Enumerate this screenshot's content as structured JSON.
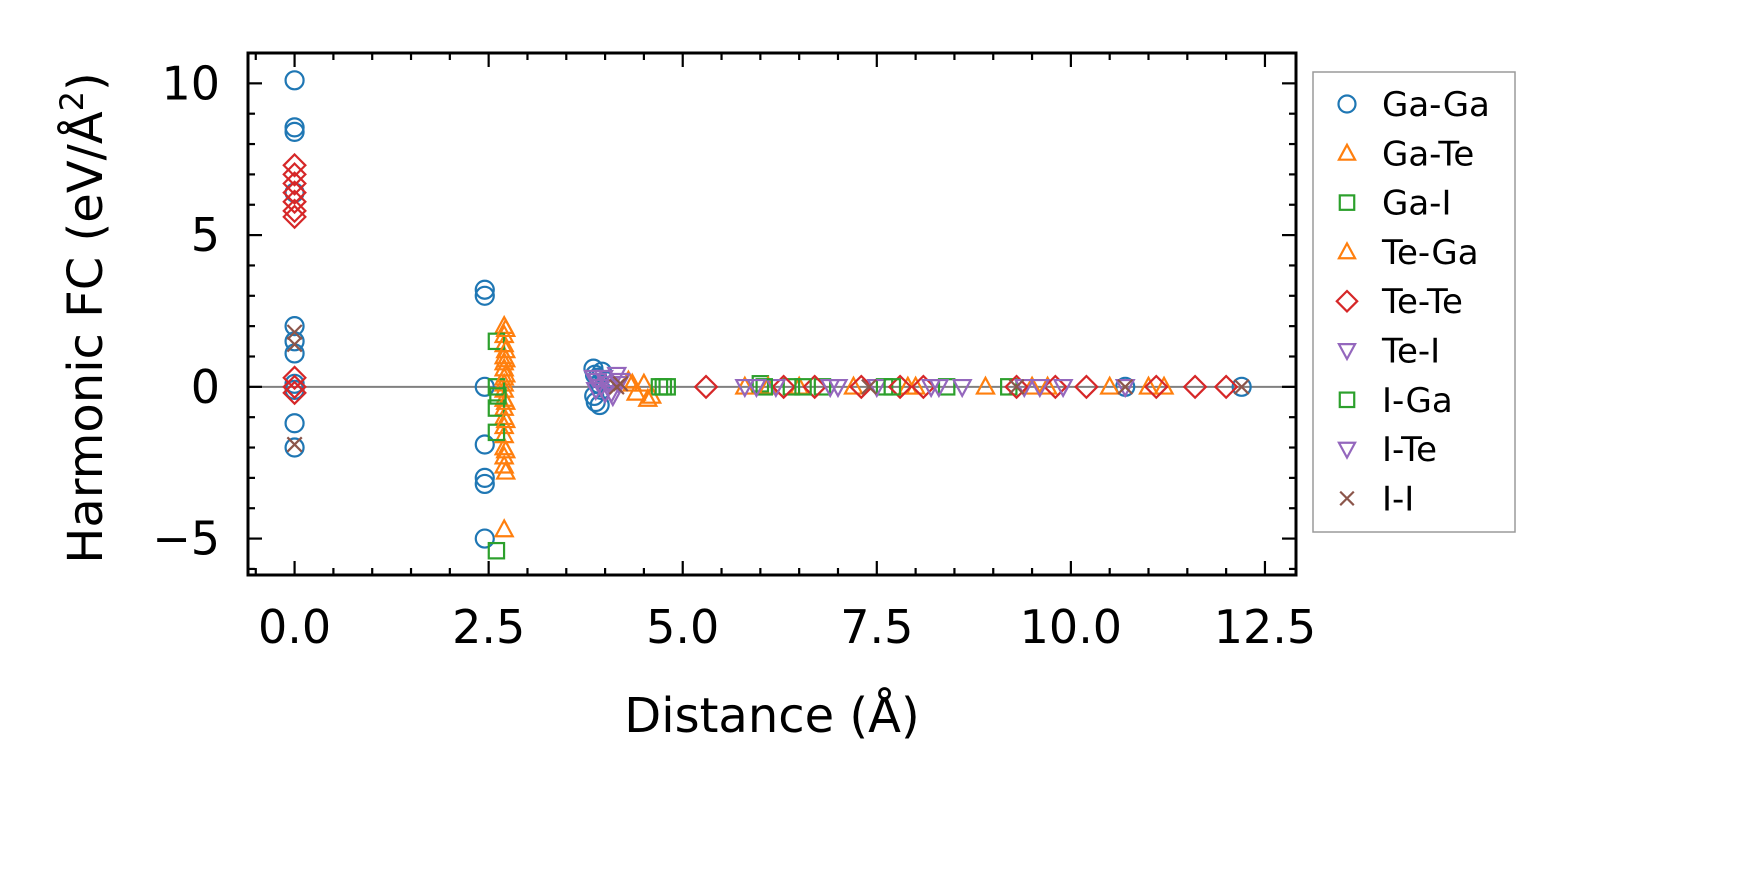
{
  "chart_data": {
    "type": "scatter",
    "xlabel": "Distance (Å)",
    "ylabel_main": "Harmonic FC (eV/Å",
    "ylabel_sup": "2",
    "ylabel_tail": ")",
    "xlim": [
      -0.6,
      12.9
    ],
    "ylim": [
      -6.2,
      11.0
    ],
    "xticks": [
      0.0,
      2.5,
      5.0,
      7.5,
      10.0,
      12.5
    ],
    "xtick_labels": [
      "0.0",
      "2.5",
      "5.0",
      "7.5",
      "10.0",
      "12.5"
    ],
    "yticks": [
      10,
      5,
      0,
      -5
    ],
    "ytick_labels": [
      "10",
      "5",
      "0",
      "−5"
    ],
    "hline_y": 0,
    "legend_position": "outside-right",
    "series": [
      {
        "name": "Ga-Ga",
        "marker": "circle",
        "color": "#1f77b4",
        "x": [
          0,
          0,
          0,
          0,
          0,
          0,
          0,
          0,
          0,
          0,
          0,
          2.45,
          2.45,
          2.45,
          2.45,
          2.45,
          2.45,
          2.45,
          3.85,
          3.87,
          3.9,
          3.92,
          3.95,
          3.86,
          3.88,
          3.93,
          3.96,
          4.0,
          12.2,
          10.7
        ],
        "y": [
          10.1,
          8.55,
          8.4,
          6.4,
          2.0,
          1.5,
          1.1,
          0.1,
          -0.1,
          -1.2,
          -2.0,
          3.2,
          3.0,
          0.0,
          -1.9,
          -3.0,
          -3.2,
          -5.0,
          0.6,
          0.4,
          0.3,
          0.1,
          -0.1,
          -0.3,
          -0.5,
          -0.6,
          0.5,
          0.2,
          0.0,
          0.0
        ]
      },
      {
        "name": "Ga-Te",
        "marker": "triangle-up",
        "color": "#ff7f0e",
        "x": [
          2.7,
          2.7,
          2.7,
          2.7,
          2.7,
          2.7,
          2.7,
          2.7,
          2.7,
          2.7,
          2.7,
          2.7,
          2.7,
          2.7,
          2.7,
          2.7,
          2.7,
          2.7,
          4.3,
          4.4,
          4.5,
          4.6,
          5.8,
          6.5,
          7.2,
          8.0,
          8.9,
          9.7,
          10.5,
          11.2
        ],
        "y": [
          2.0,
          1.7,
          1.4,
          1.0,
          0.8,
          0.6,
          0.3,
          0.1,
          -0.1,
          -0.4,
          -0.7,
          -1.0,
          -1.3,
          -1.6,
          -2.0,
          -2.3,
          -2.6,
          -4.7,
          0.2,
          -0.2,
          0.1,
          -0.3,
          0.0,
          0.0,
          0.0,
          0.0,
          0.0,
          0.0,
          0.0,
          0.0
        ]
      },
      {
        "name": "Ga-I",
        "marker": "square",
        "color": "#2ca02c",
        "x": [
          2.6,
          2.6,
          2.6,
          2.6,
          2.6,
          4.7,
          4.8,
          6.0,
          6.4,
          6.8,
          7.6,
          8.4,
          9.2
        ],
        "y": [
          1.5,
          0.0,
          -0.7,
          -1.5,
          -5.4,
          0.0,
          0.0,
          0.1,
          0.0,
          0.0,
          0.0,
          0.0,
          0.0
        ]
      },
      {
        "name": "Te-Ga",
        "marker": "triangle-up",
        "color": "#ff7f0e",
        "x": [
          2.72,
          2.72,
          2.72,
          2.72,
          2.72,
          2.72,
          2.72,
          2.72,
          4.35,
          4.55,
          6.1,
          7.9,
          9.5,
          11.0
        ],
        "y": [
          1.9,
          1.2,
          0.9,
          0.4,
          -0.5,
          -1.1,
          -2.1,
          -2.8,
          0.1,
          -0.4,
          0.0,
          0.0,
          0.0,
          0.0
        ]
      },
      {
        "name": "Te-Te",
        "marker": "diamond",
        "color": "#d62728",
        "x": [
          0,
          0,
          0,
          0,
          0,
          0,
          0,
          0,
          0,
          0,
          5.3,
          6.3,
          6.7,
          7.3,
          7.8,
          8.1,
          9.3,
          9.8,
          10.2,
          11.1,
          11.6,
          12.0
        ],
        "y": [
          7.3,
          7.0,
          6.7,
          6.4,
          6.1,
          5.8,
          5.6,
          0.3,
          0.0,
          -0.2,
          0.0,
          0.0,
          0.0,
          0.0,
          0.0,
          0.0,
          0.0,
          0.0,
          0.0,
          0.0,
          0.0,
          0.0
        ]
      },
      {
        "name": "Te-I",
        "marker": "triangle-down",
        "color": "#9467bd",
        "x": [
          3.85,
          3.9,
          3.95,
          4.0,
          4.05,
          4.1,
          4.15,
          4.2,
          5.8,
          6.2,
          6.9,
          7.5,
          8.2,
          8.6,
          9.6,
          9.9,
          10.7
        ],
        "y": [
          0.3,
          0.2,
          0.0,
          -0.2,
          0.1,
          -0.3,
          0.4,
          0.2,
          0.0,
          0.0,
          0.0,
          0.0,
          0.0,
          0.0,
          0.0,
          0.0,
          0.0
        ]
      },
      {
        "name": "I-Ga",
        "marker": "square",
        "color": "#2ca02c",
        "x": [
          2.62,
          4.75,
          6.05,
          6.55,
          7.7
        ],
        "y": [
          -0.3,
          0.0,
          0.0,
          0.0,
          0.0
        ]
      },
      {
        "name": "I-Te",
        "marker": "triangle-down",
        "color": "#9467bd",
        "x": [
          3.88,
          3.98,
          4.08,
          4.18,
          5.95,
          7.0,
          8.3,
          9.4
        ],
        "y": [
          -0.1,
          0.3,
          -0.2,
          0.1,
          0.0,
          0.0,
          0.0,
          0.0
        ]
      },
      {
        "name": "I-I",
        "marker": "x",
        "color": "#8c564b",
        "x": [
          0,
          0,
          0,
          4.15,
          4.2,
          7.4,
          9.3,
          10.7,
          12.2
        ],
        "y": [
          1.8,
          1.4,
          -1.9,
          0.0,
          0.1,
          0.0,
          0.0,
          0.0,
          0.0
        ]
      }
    ]
  }
}
